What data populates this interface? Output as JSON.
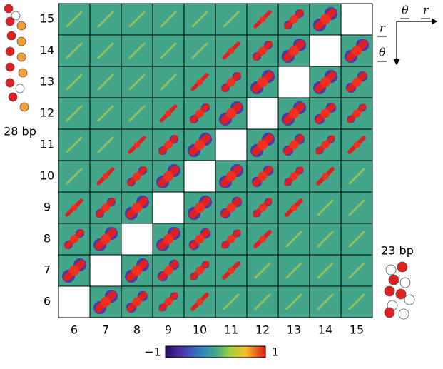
{
  "figure": {
    "row_labels": [
      15,
      14,
      13,
      12,
      11,
      10,
      9,
      8,
      7,
      6
    ],
    "col_labels": [
      6,
      7,
      8,
      9,
      10,
      11,
      12,
      13,
      14,
      15
    ],
    "colorbar": {
      "lim": [
        -1,
        1
      ],
      "ticks": [
        {
          "value": -1,
          "label": "−1"
        },
        1
      ]
    },
    "annotations": {
      "left_label": "28 bp",
      "right_label": "23 bp",
      "theta": "θ",
      "r": "r"
    }
  }
}
